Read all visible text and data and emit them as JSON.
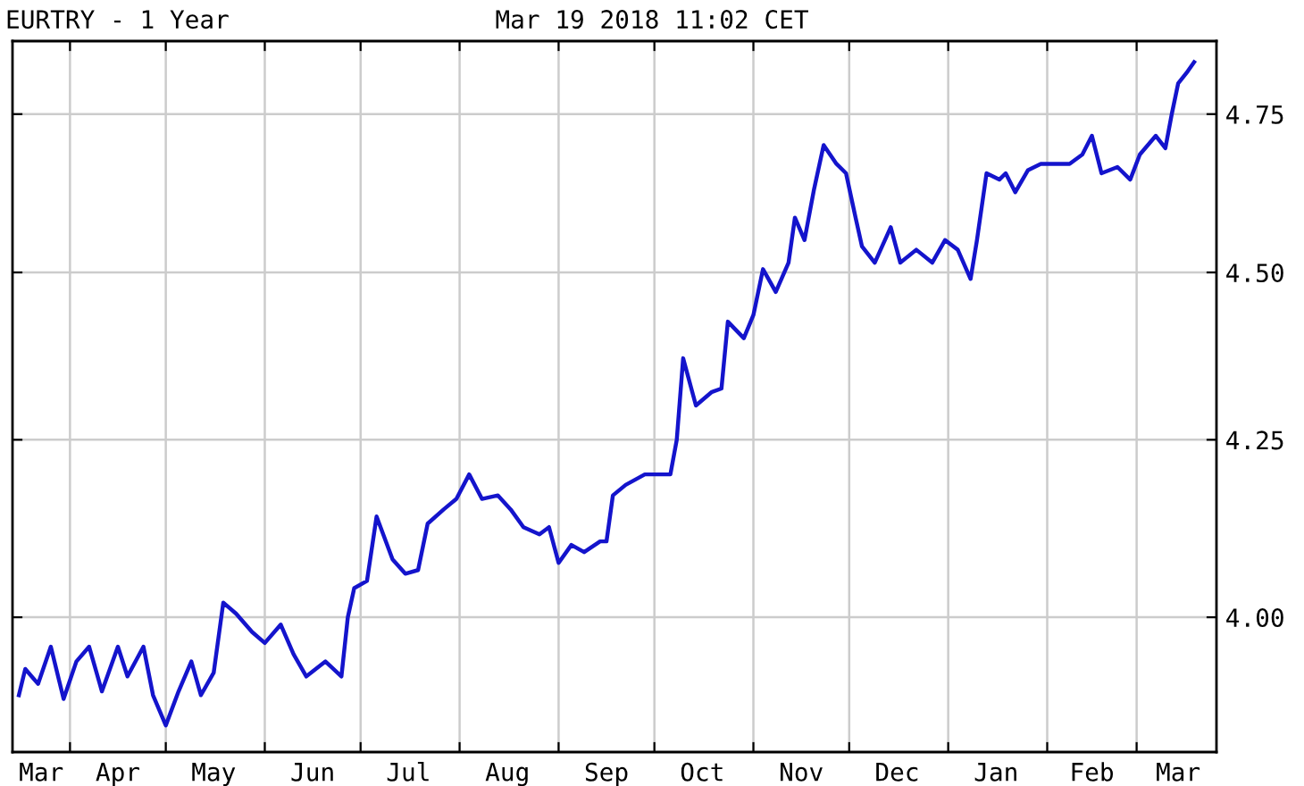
{
  "chart_data": {
    "type": "line",
    "title": "EURTRY - 1 Year",
    "subtitle": "Mar 19 2018 11:02 CET",
    "x": [
      "2017-03-16",
      "2017-03-18",
      "2017-03-22",
      "2017-03-26",
      "2017-03-30",
      "2017-04-03",
      "2017-04-07",
      "2017-04-11",
      "2017-04-16",
      "2017-04-19",
      "2017-04-24",
      "2017-04-27",
      "2017-05-01",
      "2017-05-05",
      "2017-05-09",
      "2017-05-12",
      "2017-05-16",
      "2017-05-19",
      "2017-05-23",
      "2017-05-28",
      "2017-06-01",
      "2017-06-06",
      "2017-06-10",
      "2017-06-14",
      "2017-06-20",
      "2017-06-25",
      "2017-06-27",
      "2017-06-29",
      "2017-07-03",
      "2017-07-06",
      "2017-07-11",
      "2017-07-15",
      "2017-07-19",
      "2017-07-22",
      "2017-07-27",
      "2017-07-31",
      "2017-08-04",
      "2017-08-08",
      "2017-08-13",
      "2017-08-17",
      "2017-08-21",
      "2017-08-26",
      "2017-08-29",
      "2017-09-01",
      "2017-09-05",
      "2017-09-09",
      "2017-09-14",
      "2017-09-16",
      "2017-09-18",
      "2017-09-22",
      "2017-09-28",
      "2017-10-03",
      "2017-10-06",
      "2017-10-08",
      "2017-10-10",
      "2017-10-14",
      "2017-10-19",
      "2017-10-22",
      "2017-10-24",
      "2017-10-29",
      "2017-11-01",
      "2017-11-04",
      "2017-11-08",
      "2017-11-12",
      "2017-11-14",
      "2017-11-17",
      "2017-11-20",
      "2017-11-23",
      "2017-11-27",
      "2017-11-30",
      "2017-12-03",
      "2017-12-05",
      "2017-12-09",
      "2017-12-14",
      "2017-12-17",
      "2017-12-22",
      "2017-12-27",
      "2017-12-31",
      "2018-01-04",
      "2018-01-08",
      "2018-01-10",
      "2018-01-13",
      "2018-01-17",
      "2018-01-19",
      "2018-01-22",
      "2018-01-26",
      "2018-01-30",
      "2018-02-04",
      "2018-02-08",
      "2018-02-12",
      "2018-02-15",
      "2018-02-18",
      "2018-02-23",
      "2018-02-27",
      "2018-03-02",
      "2018-03-07",
      "2018-03-10",
      "2018-03-12",
      "2018-03-14",
      "2018-03-17",
      "2018-03-19"
    ],
    "series": [
      {
        "color": "#1414cc",
        "values": [
          3.895,
          3.93,
          3.91,
          3.96,
          3.89,
          3.94,
          3.96,
          3.9,
          3.96,
          3.92,
          3.96,
          3.895,
          3.855,
          3.9,
          3.94,
          3.895,
          3.925,
          4.02,
          4.005,
          3.98,
          3.965,
          3.99,
          3.95,
          3.92,
          3.94,
          3.92,
          4.0,
          4.04,
          4.05,
          4.14,
          4.08,
          4.06,
          4.065,
          4.13,
          4.15,
          4.165,
          4.2,
          4.165,
          4.17,
          4.15,
          4.125,
          4.115,
          4.125,
          4.075,
          4.1,
          4.09,
          4.105,
          4.105,
          4.17,
          4.185,
          4.2,
          4.2,
          4.2,
          4.25,
          4.37,
          4.3,
          4.32,
          4.325,
          4.425,
          4.4,
          4.435,
          4.505,
          4.47,
          4.515,
          4.585,
          4.55,
          4.63,
          4.7,
          4.67,
          4.655,
          4.585,
          4.54,
          4.515,
          4.57,
          4.515,
          4.535,
          4.515,
          4.55,
          4.535,
          4.49,
          4.55,
          4.655,
          4.645,
          4.655,
          4.625,
          4.66,
          4.67,
          4.67,
          4.67,
          4.685,
          4.715,
          4.655,
          4.665,
          4.645,
          4.685,
          4.715,
          4.695,
          4.75,
          4.8,
          4.82,
          4.835
        ]
      }
    ],
    "log": "y",
    "ylim": [
      3.82,
      4.87
    ],
    "yticks": [
      {
        "value": 4,
        "label": "4.00"
      },
      {
        "value": 4.25,
        "label": "4.25"
      },
      {
        "value": 4.5,
        "label": "4.50"
      },
      {
        "value": 4.75,
        "label": "4.75"
      }
    ],
    "xlim": [
      "2017-03-14",
      "2018-03-26"
    ],
    "xticks": [
      {
        "value": "2017-03-23",
        "label": "Mar"
      },
      {
        "value": "2017-04-01",
        "label": null
      },
      {
        "value": "2017-04-16",
        "label": "Apr"
      },
      {
        "value": "2017-05-01",
        "label": null
      },
      {
        "value": "2017-05-16",
        "label": "May"
      },
      {
        "value": "2017-06-01",
        "label": null
      },
      {
        "value": "2017-06-16",
        "label": "Jun"
      },
      {
        "value": "2017-07-01",
        "label": null
      },
      {
        "value": "2017-07-16",
        "label": "Jul"
      },
      {
        "value": "2017-08-01",
        "label": null
      },
      {
        "value": "2017-08-16",
        "label": "Aug"
      },
      {
        "value": "2017-09-01",
        "label": null
      },
      {
        "value": "2017-09-16",
        "label": "Sep"
      },
      {
        "value": "2017-10-01",
        "label": null
      },
      {
        "value": "2017-10-16",
        "label": "Oct"
      },
      {
        "value": "2017-11-01",
        "label": null
      },
      {
        "value": "2017-11-16",
        "label": "Nov"
      },
      {
        "value": "2017-12-01",
        "label": null
      },
      {
        "value": "2017-12-16",
        "label": "Dec"
      },
      {
        "value": "2018-01-01",
        "label": null
      },
      {
        "value": "2018-01-16",
        "label": "Jan"
      },
      {
        "value": "2018-02-01",
        "label": null
      },
      {
        "value": "2018-02-15",
        "label": "Feb"
      },
      {
        "value": "2018-03-01",
        "label": null
      },
      {
        "value": "2018-03-14",
        "label": "Mar"
      }
    ],
    "grid": true,
    "legend": false,
    "marker": "none",
    "line_style": "solid"
  }
}
